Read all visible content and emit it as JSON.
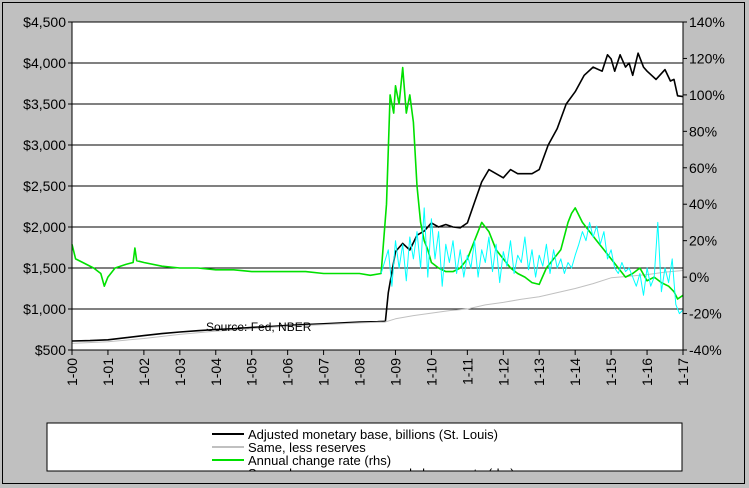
{
  "chart_data": {
    "type": "line",
    "annotation": "Source: Fed, NBER",
    "y_left": {
      "range": [
        500,
        4500
      ],
      "ticks": [
        500,
        1000,
        1500,
        2000,
        2500,
        3000,
        3500,
        4000,
        4500
      ],
      "tick_labels": [
        "$500",
        "$1,000",
        "$1,500",
        "$2,000",
        "$2,500",
        "$3,000",
        "$3,500",
        "$4,000",
        "$4,500"
      ]
    },
    "y_right": {
      "range": [
        -40,
        140
      ],
      "ticks": [
        -40,
        -20,
        0,
        20,
        40,
        60,
        80,
        100,
        120,
        140
      ],
      "tick_labels": [
        "-40%",
        "-20%",
        "0%",
        "20%",
        "40%",
        "60%",
        "80%",
        "100%",
        "120%",
        "140%"
      ]
    },
    "x_axis": {
      "range": [
        2000,
        2017
      ],
      "ticks": [
        2000,
        2001,
        2002,
        2003,
        2004,
        2005,
        2006,
        2007,
        2008,
        2009,
        2010,
        2011,
        2012,
        2013,
        2014,
        2015,
        2016,
        2017
      ],
      "tick_labels": [
        "1-00",
        "1-01",
        "1-02",
        "1-03",
        "1-04",
        "1-05",
        "1-06",
        "1-07",
        "1-08",
        "1-09",
        "1-10",
        "1-11",
        "1-12",
        "1-13",
        "1-14",
        "1-15",
        "1-16",
        "1-17"
      ]
    },
    "grid": "horizontal",
    "legend_position": "bottom",
    "series": [
      {
        "name": "Adjusted monetary base, billions (St. Louis)",
        "axis": "left",
        "color": "#000000",
        "x": [
          2000.0,
          2000.5,
          2001.0,
          2001.5,
          2002.0,
          2002.5,
          2003.0,
          2003.5,
          2004.0,
          2004.5,
          2005.0,
          2005.5,
          2006.0,
          2006.5,
          2007.0,
          2007.5,
          2008.0,
          2008.5,
          2008.72,
          2008.8,
          2008.9,
          2009.0,
          2009.2,
          2009.4,
          2009.6,
          2009.8,
          2010.0,
          2010.2,
          2010.4,
          2010.6,
          2010.8,
          2011.0,
          2011.2,
          2011.4,
          2011.6,
          2011.8,
          2012.0,
          2012.2,
          2012.4,
          2012.6,
          2012.8,
          2013.0,
          2013.25,
          2013.5,
          2013.75,
          2014.0,
          2014.25,
          2014.5,
          2014.75,
          2014.9,
          2015.0,
          2015.1,
          2015.25,
          2015.4,
          2015.5,
          2015.6,
          2015.75,
          2015.9,
          2016.0,
          2016.25,
          2016.5,
          2016.65,
          2016.75,
          2016.85,
          2017.0
        ],
        "y": [
          610,
          615,
          625,
          650,
          675,
          700,
          720,
          735,
          750,
          760,
          775,
          785,
          800,
          810,
          820,
          830,
          840,
          845,
          850,
          1200,
          1450,
          1700,
          1800,
          1720,
          1900,
          1950,
          2050,
          2000,
          2030,
          2000,
          1990,
          2050,
          2300,
          2550,
          2700,
          2650,
          2600,
          2700,
          2650,
          2650,
          2650,
          2700,
          3000,
          3200,
          3500,
          3650,
          3850,
          3950,
          3900,
          4100,
          4050,
          3900,
          4100,
          3950,
          4000,
          3850,
          4120,
          3950,
          3900,
          3800,
          3920,
          3780,
          3800,
          3600,
          3590
        ]
      },
      {
        "name": "Same, less reserves",
        "axis": "left",
        "color": "#c0c0c0",
        "x": [
          2000.0,
          2001.0,
          2002.0,
          2003.0,
          2004.0,
          2005.0,
          2006.0,
          2007.0,
          2008.0,
          2008.7,
          2009.0,
          2009.5,
          2010.0,
          2010.5,
          2011.0,
          2011.5,
          2012.0,
          2012.5,
          2013.0,
          2013.5,
          2014.0,
          2014.5,
          2015.0,
          2015.5,
          2016.0,
          2016.5,
          2017.0
        ],
        "y": [
          580,
          600,
          640,
          690,
          730,
          760,
          790,
          810,
          830,
          840,
          880,
          920,
          950,
          980,
          1000,
          1050,
          1080,
          1120,
          1150,
          1200,
          1250,
          1310,
          1380,
          1400,
          1420,
          1450,
          1470
        ]
      },
      {
        "name": "Annual change rate (rhs)",
        "axis": "right",
        "color": "#00e000",
        "x": [
          2000.0,
          2000.1,
          2000.3,
          2000.6,
          2000.8,
          2000.9,
          2001.0,
          2001.2,
          2001.5,
          2001.7,
          2001.75,
          2001.8,
          2002.0,
          2002.5,
          2003.0,
          2003.5,
          2004.0,
          2004.5,
          2005.0,
          2005.5,
          2006.0,
          2006.5,
          2007.0,
          2007.5,
          2008.0,
          2008.3,
          2008.6,
          2008.75,
          2008.85,
          2008.95,
          2009.0,
          2009.1,
          2009.2,
          2009.3,
          2009.4,
          2009.5,
          2009.6,
          2009.7,
          2009.8,
          2009.9,
          2010.0,
          2010.2,
          2010.4,
          2010.6,
          2010.8,
          2011.0,
          2011.2,
          2011.4,
          2011.6,
          2011.8,
          2012.0,
          2012.2,
          2012.4,
          2012.6,
          2012.8,
          2013.0,
          2013.2,
          2013.4,
          2013.6,
          2013.8,
          2013.9,
          2014.0,
          2014.2,
          2014.4,
          2014.6,
          2014.8,
          2015.0,
          2015.2,
          2015.4,
          2015.6,
          2015.8,
          2016.0,
          2016.2,
          2016.4,
          2016.6,
          2016.75,
          2016.85,
          2017.0
        ],
        "y": [
          18,
          10,
          8,
          5,
          2,
          -5,
          0,
          5,
          7,
          8,
          16,
          9,
          8,
          6,
          5,
          5,
          4,
          4,
          3,
          3,
          3,
          3,
          2,
          2,
          2,
          1,
          2,
          40,
          100,
          90,
          105,
          95,
          115,
          90,
          100,
          85,
          50,
          30,
          20,
          15,
          8,
          5,
          3,
          3,
          5,
          10,
          20,
          30,
          25,
          15,
          10,
          5,
          2,
          0,
          -3,
          -4,
          5,
          10,
          15,
          30,
          35,
          38,
          30,
          25,
          20,
          15,
          10,
          5,
          0,
          2,
          5,
          -2,
          0,
          -3,
          -5,
          -8,
          -12,
          -10
        ]
      },
      {
        "name": "Same, less reserves, annual change rate (rhs)",
        "axis": "right",
        "color": "#00ffff",
        "x": [
          2008.6,
          2008.8,
          2008.9,
          2009.0,
          2009.1,
          2009.2,
          2009.3,
          2009.4,
          2009.5,
          2009.6,
          2009.7,
          2009.8,
          2009.9,
          2010.0,
          2010.1,
          2010.2,
          2010.3,
          2010.4,
          2010.5,
          2010.6,
          2010.7,
          2010.8,
          2010.9,
          2011.0,
          2011.1,
          2011.2,
          2011.3,
          2011.4,
          2011.5,
          2011.6,
          2011.7,
          2011.8,
          2011.9,
          2012.0,
          2012.1,
          2012.2,
          2012.3,
          2012.4,
          2012.5,
          2012.6,
          2012.7,
          2012.8,
          2012.9,
          2013.0,
          2013.1,
          2013.2,
          2013.3,
          2013.4,
          2013.5,
          2013.6,
          2013.7,
          2013.8,
          2013.9,
          2014.0,
          2014.1,
          2014.2,
          2014.3,
          2014.4,
          2014.5,
          2014.6,
          2014.7,
          2014.8,
          2014.9,
          2015.0,
          2015.1,
          2015.2,
          2015.3,
          2015.4,
          2015.5,
          2015.6,
          2015.7,
          2015.8,
          2015.9,
          2016.0,
          2016.1,
          2016.2,
          2016.3,
          2016.4,
          2016.5,
          2016.6,
          2016.7,
          2016.8,
          2016.9,
          2017.0
        ],
        "y": [
          2,
          15,
          -5,
          20,
          5,
          18,
          -2,
          22,
          10,
          25,
          5,
          38,
          0,
          32,
          10,
          25,
          -5,
          18,
          8,
          20,
          2,
          15,
          0,
          12,
          5,
          20,
          0,
          15,
          8,
          22,
          3,
          18,
          -3,
          14,
          6,
          20,
          2,
          12,
          8,
          22,
          4,
          15,
          0,
          12,
          6,
          18,
          2,
          15,
          5,
          10,
          2,
          8,
          5,
          12,
          18,
          25,
          20,
          30,
          22,
          28,
          18,
          25,
          10,
          15,
          5,
          2,
          8,
          3,
          5,
          0,
          -5,
          2,
          -10,
          5,
          -5,
          0,
          30,
          -8,
          5,
          -3,
          10,
          -15,
          -20,
          -18
        ]
      }
    ]
  }
}
